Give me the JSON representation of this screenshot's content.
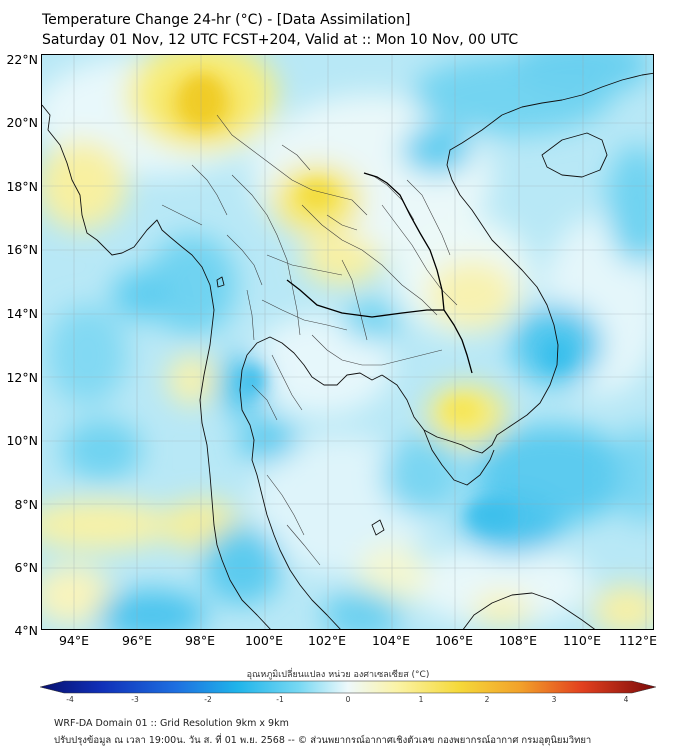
{
  "title": {
    "line1": "Temperature Change 24-hr (°C) - [Data Assimilation]",
    "line2": "Saturday 01 Nov, 12 UTC FCST+204, Valid at :: Mon 10 Nov, 00 UTC"
  },
  "axes": {
    "lat_labels": [
      "22°N",
      "20°N",
      "18°N",
      "16°N",
      "14°N",
      "12°N",
      "10°N",
      "8°N",
      "6°N",
      "4°N"
    ],
    "lon_labels": [
      "94°E",
      "96°E",
      "98°E",
      "100°E",
      "102°E",
      "104°E",
      "106°E",
      "108°E",
      "110°E",
      "112°E"
    ]
  },
  "colorbar": {
    "title": "อุณหภูมิเปลี่ยนแปลง หน่วย องศาเซลเซียส (°C)",
    "ticks": [
      "-4",
      "-3",
      "-2",
      "-1",
      "0",
      "1",
      "2",
      "3",
      "4"
    ],
    "range": [
      -4,
      4
    ]
  },
  "footer": {
    "line1": "WRF-DA Domain 01 :: Grid Resolution 9km x 9km",
    "line2": "ปรับปรุงข้อมูล ณ เวลา 19:00น. วัน ส. ที่ 01 พ.ย. 2568 -- © ส่วนพยากรณ์อากาศเชิงตัวเลข กองพยากรณ์อากาศ กรมอุตุนิยมวิทยา"
  },
  "map": {
    "variable": "24-hr temperature change",
    "colors": {
      "cooling_strong": "#1ea8e0",
      "cooling": "#5fcff0",
      "cooling_weak": "#a8e6f7",
      "neutral": "#e9f8fb",
      "warming_weak": "#fbf5b0",
      "warming": "#f7ea5c",
      "warming_strong": "#f2d22a"
    }
  }
}
